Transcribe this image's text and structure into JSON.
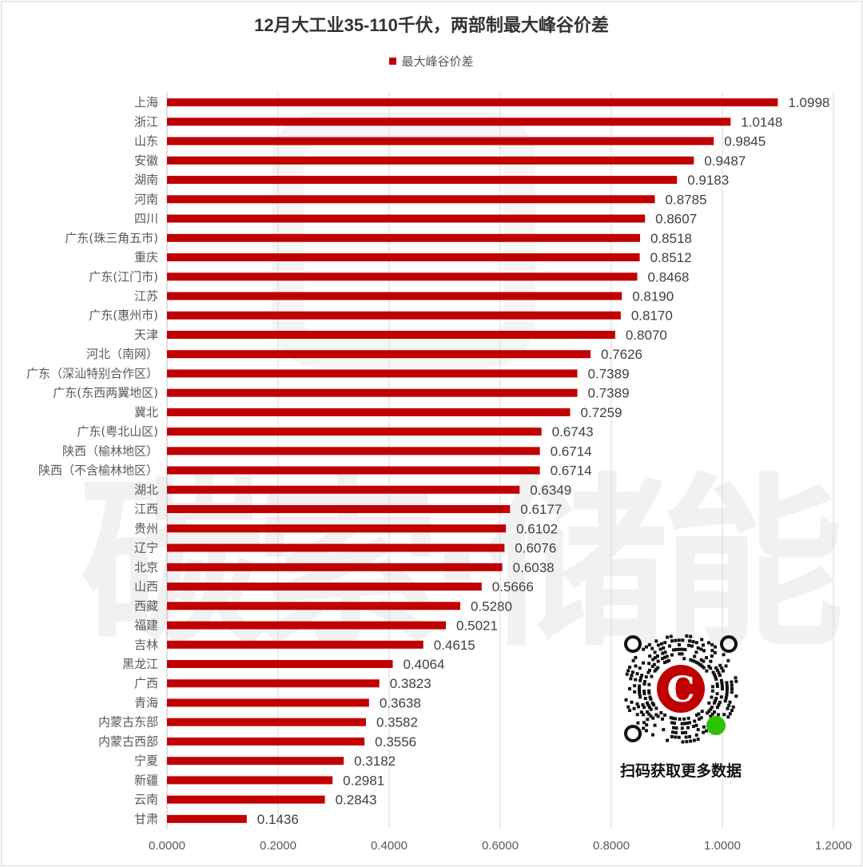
{
  "chart_data": {
    "type": "bar",
    "orientation": "horizontal",
    "title": "12月大工业35-110千伏，两部制最大峰谷价差",
    "legend": [
      "最大峰谷价差"
    ],
    "legend_position": "top",
    "xlim": [
      0,
      1.2
    ],
    "xticks": [
      "0.0000",
      "0.2000",
      "0.4000",
      "0.6000",
      "0.8000",
      "1.0000",
      "1.2000"
    ],
    "grid": true,
    "categories": [
      "上海",
      "浙江",
      "山东",
      "安徽",
      "湖南",
      "河南",
      "四川",
      "广东(珠三角五市)",
      "重庆",
      "广东(江门市)",
      "江苏",
      "广东(惠州市)",
      "天津",
      "河北（南网）",
      "广东（深汕特别合作区）",
      "广东(东西两翼地区)",
      "冀北",
      "广东(粤北山区)",
      "陕西（榆林地区）",
      "陕西（不含榆林地区）",
      "湖北",
      "江西",
      "贵州",
      "辽宁",
      "北京",
      "山西",
      "西藏",
      "福建",
      "吉林",
      "黑龙江",
      "广西",
      "青海",
      "内蒙古东部",
      "内蒙古西部",
      "宁夏",
      "新疆",
      "云南",
      "甘肃"
    ],
    "values": [
      1.0998,
      1.0148,
      0.9845,
      0.9487,
      0.9183,
      0.8785,
      0.8607,
      0.8518,
      0.8512,
      0.8468,
      0.819,
      0.817,
      0.807,
      0.7626,
      0.7389,
      0.7389,
      0.7259,
      0.6743,
      0.6714,
      0.6714,
      0.6349,
      0.6177,
      0.6102,
      0.6076,
      0.6038,
      0.5666,
      0.528,
      0.5021,
      0.4615,
      0.4064,
      0.3823,
      0.3638,
      0.3582,
      0.3556,
      0.3182,
      0.2981,
      0.2843,
      0.1436
    ],
    "value_labels": [
      "1.0998",
      "1.0148",
      "0.9845",
      "0.9487",
      "0.9183",
      "0.8785",
      "0.8607",
      "0.8518",
      "0.8512",
      "0.8468",
      "0.8190",
      "0.8170",
      "0.8070",
      "0.7626",
      "0.7389",
      "0.7389",
      "0.7259",
      "0.6743",
      "0.6714",
      "0.6714",
      "0.6349",
      "0.6177",
      "0.6102",
      "0.6076",
      "0.6038",
      "0.5666",
      "0.5280",
      "0.5021",
      "0.4615",
      "0.4064",
      "0.3823",
      "0.3638",
      "0.3582",
      "0.3556",
      "0.3182",
      "0.2981",
      "0.2843",
      "0.1436"
    ],
    "bar_color": "#c00000"
  },
  "watermark": "碳索储能",
  "qr": {
    "caption": "扫码获取更多数据"
  }
}
